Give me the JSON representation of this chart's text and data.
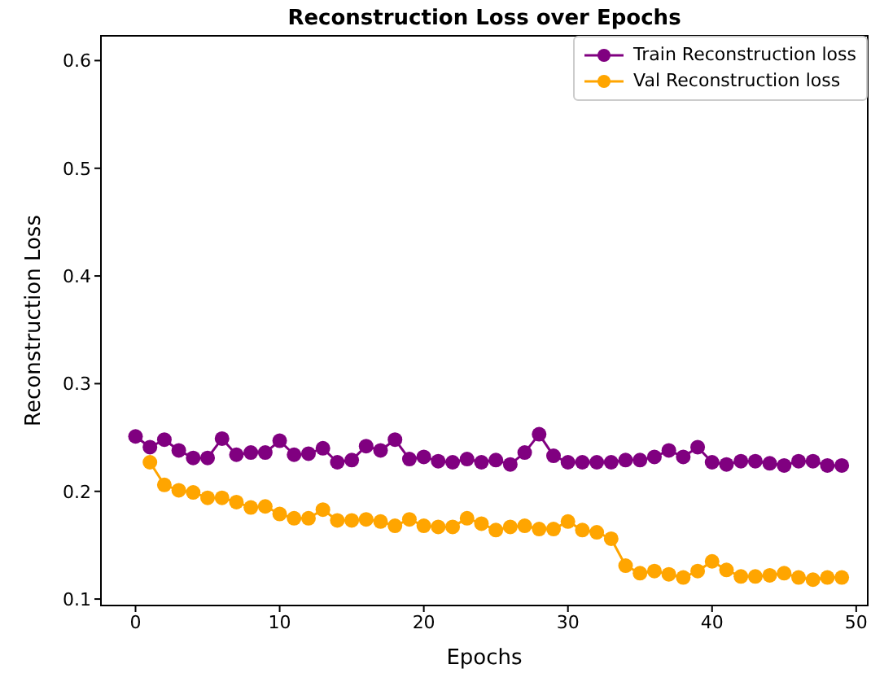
{
  "chart_data": {
    "type": "line",
    "title": "Reconstruction Loss over Epochs",
    "xlabel": "Epochs",
    "ylabel": "Reconstruction Loss",
    "x": [
      0,
      1,
      2,
      3,
      4,
      5,
      6,
      7,
      8,
      9,
      10,
      11,
      12,
      13,
      14,
      15,
      16,
      17,
      18,
      19,
      20,
      21,
      22,
      23,
      24,
      25,
      26,
      27,
      28,
      29,
      30,
      31,
      32,
      33,
      34,
      35,
      36,
      37,
      38,
      39,
      40,
      41,
      42,
      43,
      44,
      45,
      46,
      47,
      48,
      49
    ],
    "series": [
      {
        "name": "Train Reconstruction loss",
        "color": "#800080",
        "values": [
          0.251,
          0.241,
          0.248,
          0.238,
          0.231,
          0.231,
          0.249,
          0.234,
          0.236,
          0.236,
          0.247,
          0.234,
          0.235,
          0.24,
          0.227,
          0.229,
          0.242,
          0.238,
          0.248,
          0.23,
          0.232,
          0.228,
          0.227,
          0.23,
          0.227,
          0.229,
          0.225,
          0.236,
          0.253,
          0.233,
          0.227,
          0.227,
          0.227,
          0.227,
          0.229,
          0.229,
          0.232,
          0.238,
          0.232,
          0.241,
          0.227,
          0.225,
          0.228,
          0.228,
          0.226,
          0.224,
          0.228,
          0.228,
          0.224,
          0.224
        ]
      },
      {
        "name": "Val Reconstruction loss",
        "color": "#ffa500",
        "values": [
          null,
          0.227,
          0.206,
          0.201,
          0.199,
          0.194,
          0.194,
          0.19,
          0.185,
          0.186,
          0.179,
          0.175,
          0.175,
          0.183,
          0.173,
          0.173,
          0.174,
          0.172,
          0.168,
          0.174,
          0.168,
          0.167,
          0.167,
          0.175,
          0.17,
          0.164,
          0.167,
          0.168,
          0.165,
          0.165,
          0.172,
          0.164,
          0.162,
          0.156,
          0.131,
          0.124,
          0.126,
          0.123,
          0.12,
          0.126,
          0.135,
          0.127,
          0.121,
          0.121,
          0.122,
          0.124,
          0.12,
          0.118,
          0.12,
          0.12
        ]
      }
    ],
    "xlim": [
      -2.4,
      50.8
    ],
    "xticks": [
      0,
      10,
      20,
      30,
      40,
      50
    ],
    "ylim": [
      0.094,
      0.623
    ],
    "yticks": [
      0.1,
      0.2,
      0.3,
      0.4,
      0.5,
      0.6
    ],
    "grid": false,
    "legend": "top right",
    "marker": "circle",
    "line_style": "solid"
  }
}
